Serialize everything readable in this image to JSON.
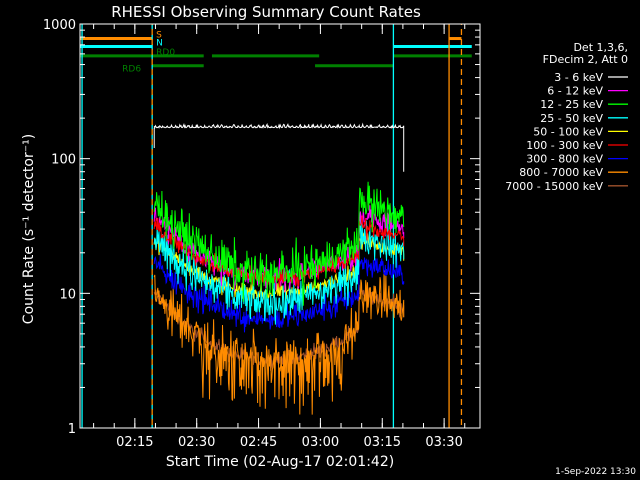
{
  "chart_data": {
    "type": "line",
    "title": "RHESSI Observing Summary Count Rates",
    "xlabel": "Start Time (02-Aug-17 02:01:42)",
    "ylabel": "Count Rate (s⁻¹ detector⁻¹)",
    "ylog": true,
    "xlim_minutes": [
      0,
      97
    ],
    "ylim": [
      1,
      1000
    ],
    "x_ticks": [
      {
        "t": 13.3,
        "label": "02:15"
      },
      {
        "t": 28.3,
        "label": "02:30"
      },
      {
        "t": 43.3,
        "label": "02:45"
      },
      {
        "t": 58.3,
        "label": "03:00"
      },
      {
        "t": 73.3,
        "label": "03:15"
      },
      {
        "t": 88.3,
        "label": "03:30"
      }
    ],
    "y_ticks": [
      {
        "v": 1,
        "label": "1"
      },
      {
        "v": 10,
        "label": "10"
      },
      {
        "v": 100,
        "label": "100"
      },
      {
        "v": 1000,
        "label": "1000"
      }
    ],
    "legend": {
      "placement": "right",
      "header": [
        "Det 1,3,6,",
        "FDecim 2, Att 0"
      ]
    },
    "data_start_t": 18,
    "data_end_t": 78.5,
    "series": [
      {
        "name": "3 - 6 keV",
        "color": "#ffffff",
        "min": 170,
        "max": 180,
        "noise": 0.02
      },
      {
        "name": "6 - 12 keV",
        "color": "#ff00ff",
        "min": 13,
        "max": 38,
        "noise": 0.08
      },
      {
        "name": "12 - 25 keV",
        "color": "#00ff00",
        "min": 14,
        "max": 48,
        "noise": 0.13
      },
      {
        "name": "25 - 50 keV",
        "color": "#00ffff",
        "min": 8.5,
        "max": 27,
        "noise": 0.12
      },
      {
        "name": "50 - 100 keV",
        "color": "#ffff00",
        "min": 10,
        "max": 25,
        "noise": 0.05
      },
      {
        "name": "100 - 300 keV",
        "color": "#ff0000",
        "min": 13,
        "max": 32,
        "noise": 0.05
      },
      {
        "name": "300 - 800 keV",
        "color": "#0000ff",
        "min": 6.5,
        "max": 17,
        "noise": 0.08
      },
      {
        "name": "800 - 7000 keV",
        "color": "#ff8c00",
        "min": 3.2,
        "max": 10,
        "noise": 0.14
      },
      {
        "name": "7000 - 15000 keV",
        "color": "#a0522d",
        "min": 3.2,
        "max": 10,
        "noise": 0.05
      }
    ],
    "flags": [
      {
        "label": "S",
        "color": "#ff8c00",
        "level": 780,
        "segments": [
          [
            0,
            17.5
          ],
          [
            89.5,
            92.5
          ]
        ]
      },
      {
        "label": "N",
        "color": "#00ffff",
        "level": 680,
        "segments": [
          [
            0,
            17.5
          ],
          [
            76,
            95
          ]
        ]
      },
      {
        "label": "RD0",
        "color": "#008000",
        "level": 580,
        "segments": [
          [
            0,
            30
          ],
          [
            32,
            58
          ],
          [
            76,
            95
          ]
        ]
      },
      {
        "label": "RD6",
        "color": "#008000",
        "level": 490,
        "segments": [
          [
            17.5,
            30
          ],
          [
            57,
            76
          ]
        ]
      }
    ],
    "vlines": [
      {
        "t": 0.5,
        "color": "#00ffff",
        "style": "solid"
      },
      {
        "t": 17.5,
        "color": "#00ffff",
        "style": "dashed"
      },
      {
        "t": 17.5,
        "color": "#ff8c00",
        "style": "dashed"
      },
      {
        "t": 76,
        "color": "#00ffff",
        "style": "solid"
      },
      {
        "t": 89.5,
        "color": "#ff8c00",
        "style": "solid"
      },
      {
        "t": 92.5,
        "color": "#ff8c00",
        "style": "dashed"
      }
    ]
  },
  "footer": {
    "timestamp": "1-Sep-2022 13:30"
  }
}
